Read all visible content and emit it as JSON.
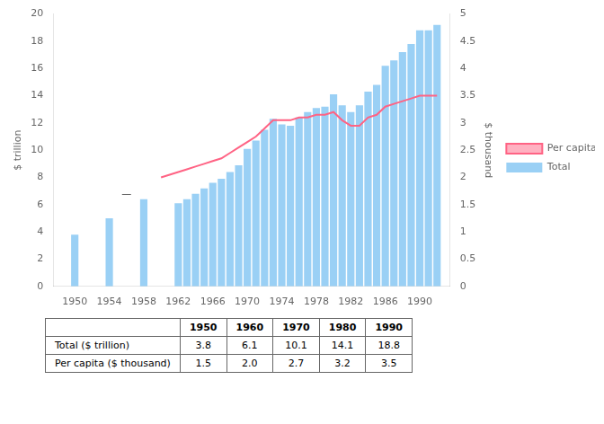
{
  "chart_data": {
    "type": "bar",
    "y_label": "$ trillion",
    "y2_label": "$ thousand",
    "series": [
      {
        "name": "Total",
        "type": "bar",
        "x": [
          1950,
          1954,
          1958,
          1962,
          1963,
          1964,
          1965,
          1966,
          1967,
          1968,
          1969,
          1970,
          1971,
          1972,
          1973,
          1974,
          1975,
          1976,
          1977,
          1978,
          1979,
          1980,
          1981,
          1982,
          1983,
          1984,
          1985,
          1986,
          1987,
          1988,
          1989,
          1990,
          1991,
          1992
        ],
        "values": [
          3.8,
          5.0,
          6.4,
          6.1,
          6.4,
          6.8,
          7.2,
          7.6,
          7.9,
          8.4,
          8.9,
          10.1,
          10.7,
          11.5,
          12.3,
          11.9,
          11.8,
          12.4,
          12.8,
          13.1,
          13.2,
          14.1,
          13.3,
          12.8,
          13.3,
          14.3,
          14.8,
          16.2,
          16.6,
          17.2,
          17.8,
          18.8,
          18.8,
          19.2
        ]
      },
      {
        "name": "Per capita",
        "type": "line",
        "axis": "y2",
        "x": [
          1960,
          1961,
          1962,
          1963,
          1964,
          1965,
          1966,
          1967,
          1968,
          1969,
          1970,
          1971,
          1972,
          1973,
          1974,
          1975,
          1976,
          1977,
          1978,
          1979,
          1980,
          1981,
          1982,
          1983,
          1984,
          1985,
          1986,
          1987,
          1988,
          1989,
          1990,
          1991,
          1992
        ],
        "values": [
          2.0,
          2.05,
          2.1,
          2.15,
          2.2,
          2.25,
          2.3,
          2.35,
          2.45,
          2.55,
          2.65,
          2.75,
          2.9,
          3.05,
          3.05,
          3.05,
          3.1,
          3.1,
          3.15,
          3.15,
          3.2,
          3.05,
          2.95,
          2.95,
          3.1,
          3.15,
          3.3,
          3.35,
          3.4,
          3.45,
          3.5,
          3.5,
          3.5
        ]
      }
    ],
    "xlim": [
      1947.5,
      1993.5
    ],
    "xticks": [
      1950,
      1954,
      1958,
      1962,
      1966,
      1970,
      1974,
      1978,
      1982,
      1986,
      1990
    ],
    "ylim": [
      0,
      20
    ],
    "yticks": [
      0,
      2,
      4,
      6,
      8,
      10,
      12,
      14,
      16,
      18,
      20
    ],
    "y2lim": [
      0,
      5
    ],
    "y2ticks": [
      0,
      0.5,
      1,
      1.5,
      2,
      2.5,
      3,
      3.5,
      4,
      4.5,
      5
    ],
    "annotations": [
      {
        "text": "—",
        "x": 1956,
        "y": 6.8
      }
    ],
    "table": {
      "columns": [
        "1950",
        "1960",
        "1970",
        "1980",
        "1990"
      ],
      "rows": [
        {
          "label": "Total ($ trillion)",
          "values": [
            "3.8",
            "6.1",
            "10.1",
            "14.1",
            "18.8"
          ]
        },
        {
          "label": "Per capita ($ thousand)",
          "values": [
            "1.5",
            "2.0",
            "2.7",
            "3.2",
            "3.5"
          ]
        }
      ]
    },
    "grid": false,
    "legend": "right"
  }
}
